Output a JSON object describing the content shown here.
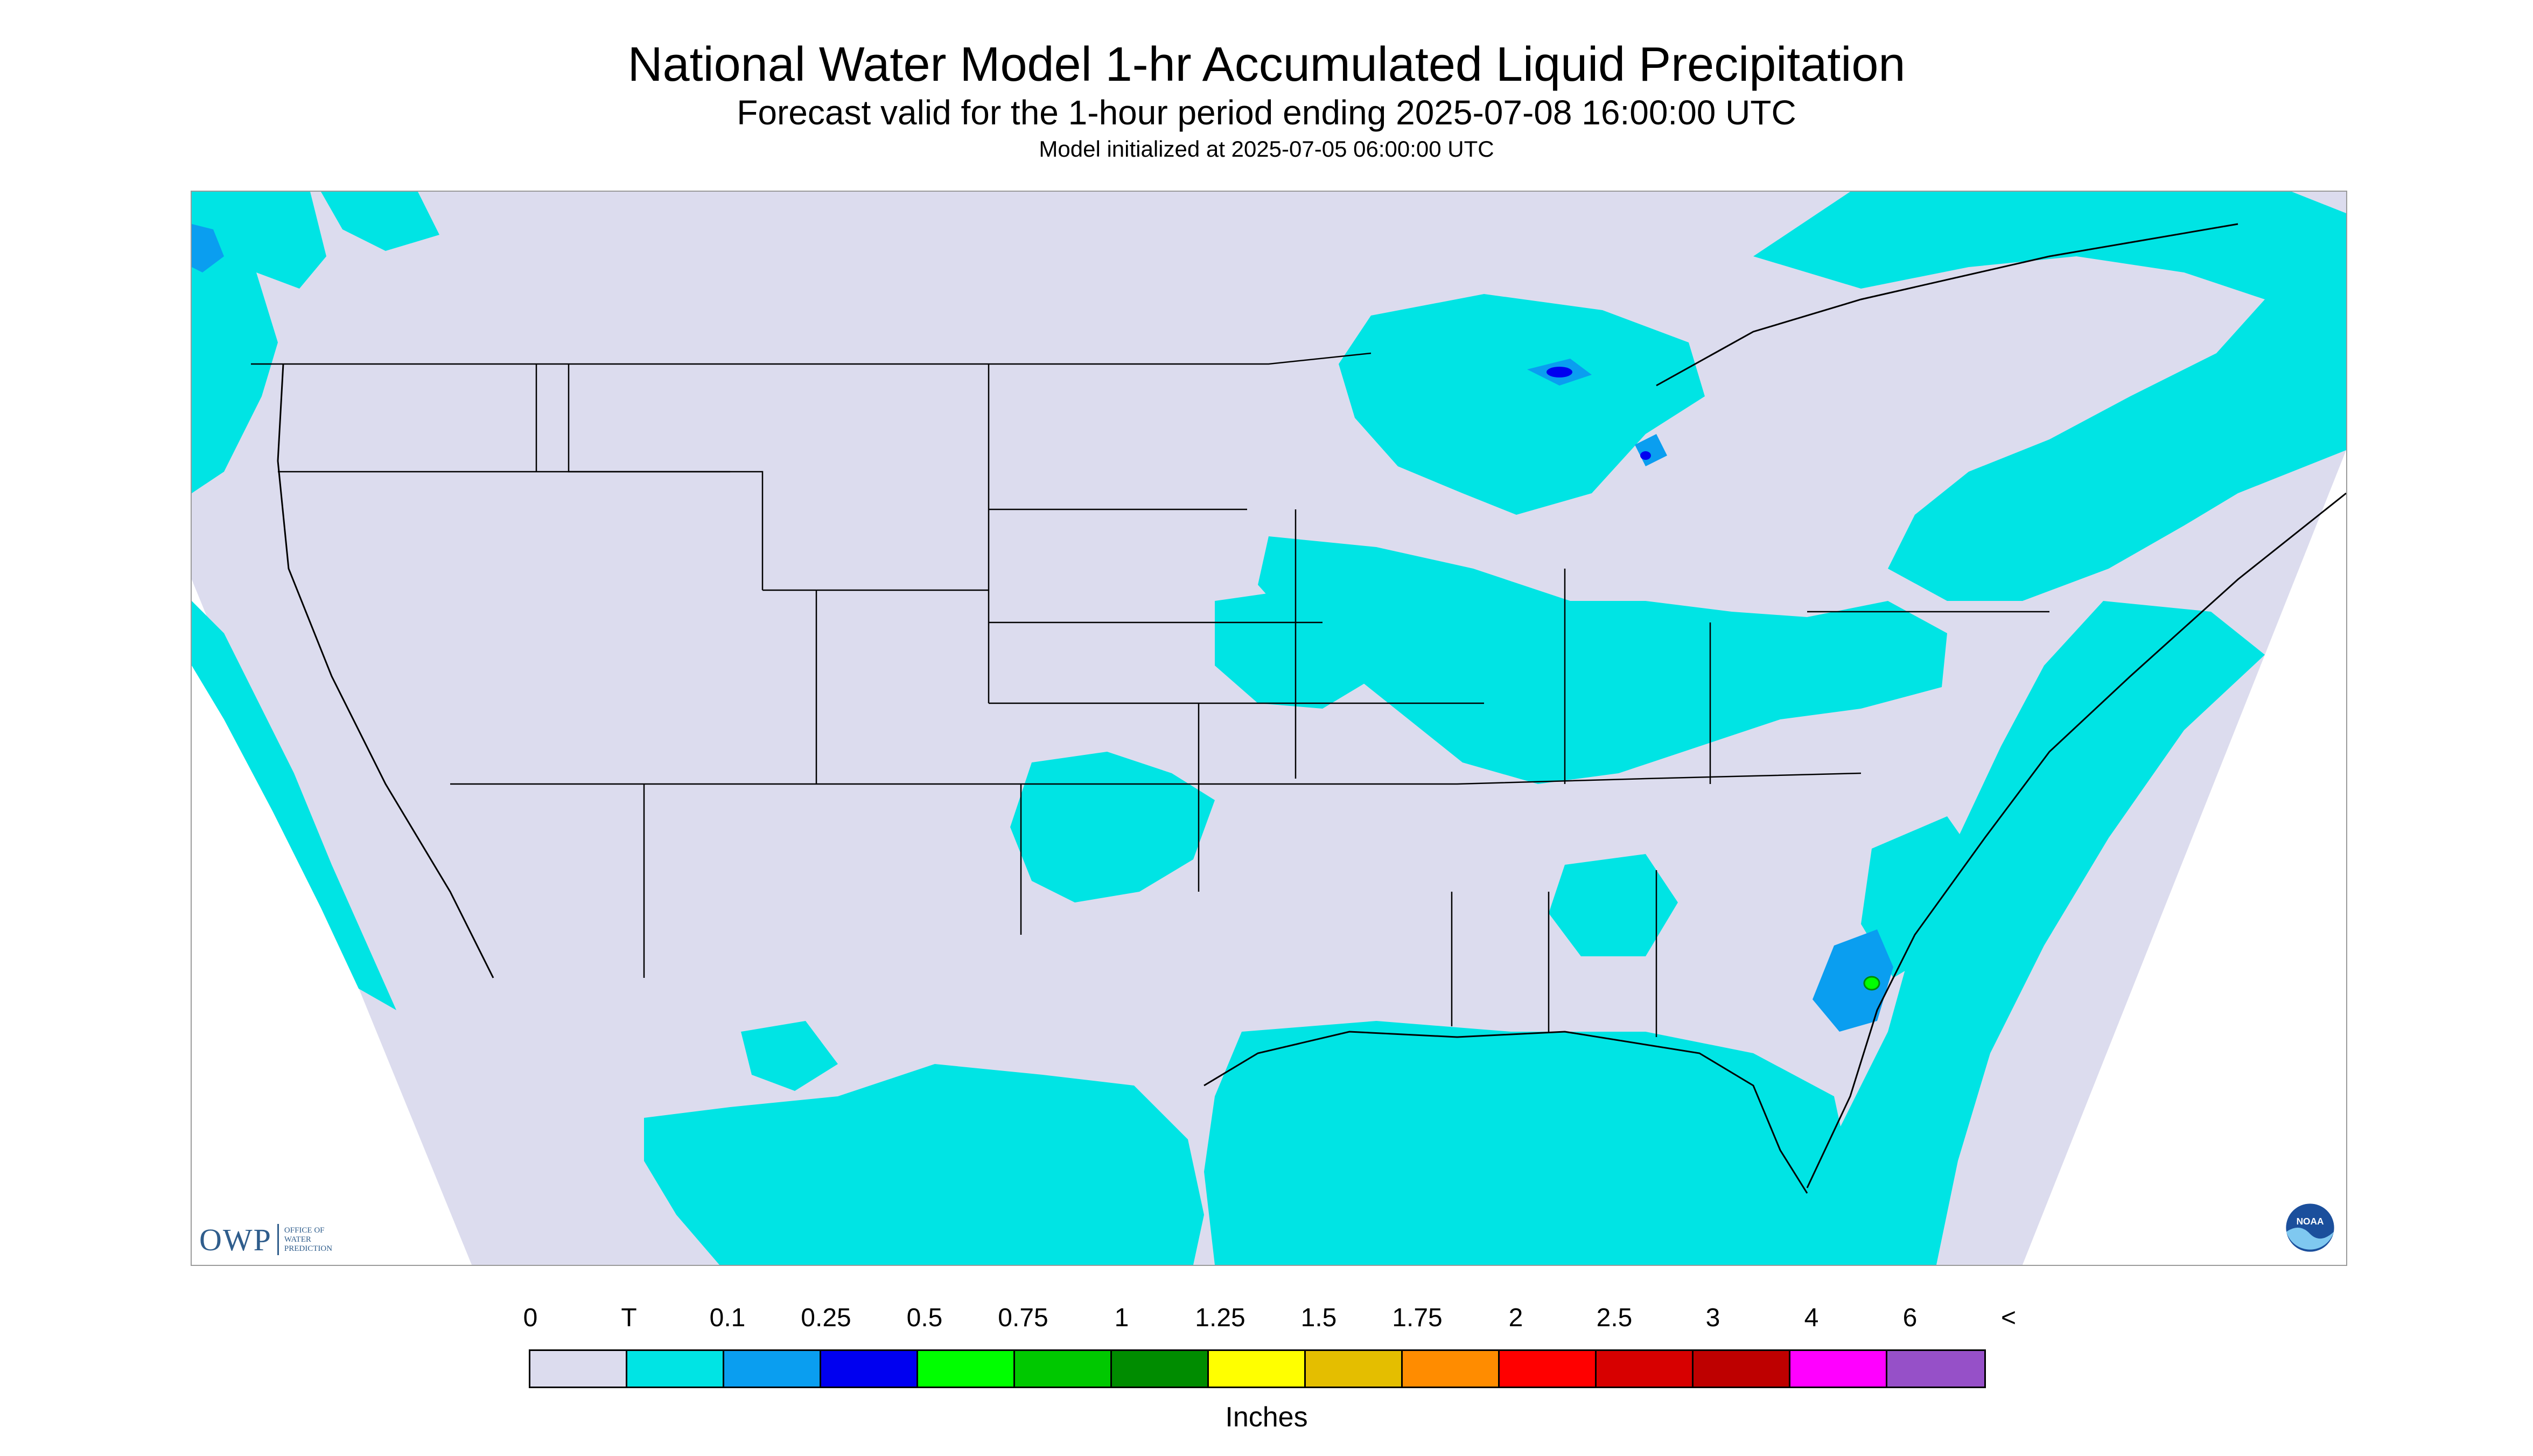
{
  "header": {
    "title": "National Water Model 1-hr Accumulated Liquid Precipitation",
    "subtitle": "Forecast valid for the 1-hour period ending 2025-07-08 16:00:00 UTC",
    "init": "Model initialized at 2025-07-05 06:00:00 UTC"
  },
  "logos": {
    "owp_mark": "OWP",
    "owp_text": [
      "OFFICE OF",
      "WATER",
      "PREDICTION"
    ],
    "noaa_text": "NOAA"
  },
  "colors": {
    "no_data": "#ffffff",
    "background": "#dcdcee",
    "trace": "#00e4e4",
    "light": "#0a9ef0",
    "green": "#00d200",
    "border_line": "#000000"
  },
  "legend": {
    "labels": [
      "0",
      "T",
      "0.1",
      "0.25",
      "0.5",
      "0.75",
      "1",
      "1.25",
      "1.5",
      "1.75",
      "2",
      "2.5",
      "3",
      "4",
      "6",
      "<"
    ],
    "colors": [
      "#dcdcee",
      "#00e4e4",
      "#0a9ef0",
      "#0000f0",
      "#00ff00",
      "#00c800",
      "#008c00",
      "#ffff00",
      "#e4be00",
      "#ff8c00",
      "#ff0000",
      "#d70000",
      "#be0000",
      "#ff00ff",
      "#9650c8"
    ],
    "units": "Inches"
  }
}
